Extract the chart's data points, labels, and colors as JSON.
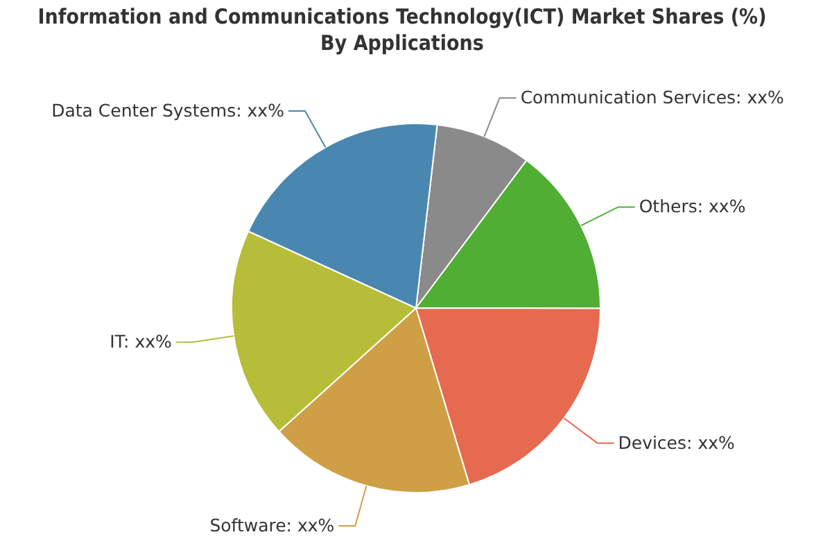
{
  "chart_data": {
    "type": "pie",
    "title": "Information and Communications Technology(ICT) Market Shares (%)\nBy Applications",
    "categories": [
      "Communication Services",
      "Others",
      "Devices",
      "Software",
      "IT",
      "Data Center Systems"
    ],
    "values": [
      8.4,
      14.8,
      20.3,
      18.0,
      18.5,
      20.0
    ],
    "colors": [
      "#8a8a8a",
      "#4fae33",
      "#e66a4f",
      "#cf9f45",
      "#b6bd38",
      "#4a87b0"
    ],
    "value_labels": [
      "xx%",
      "xx%",
      "xx%",
      "xx%",
      "xx%",
      "xx%"
    ]
  }
}
